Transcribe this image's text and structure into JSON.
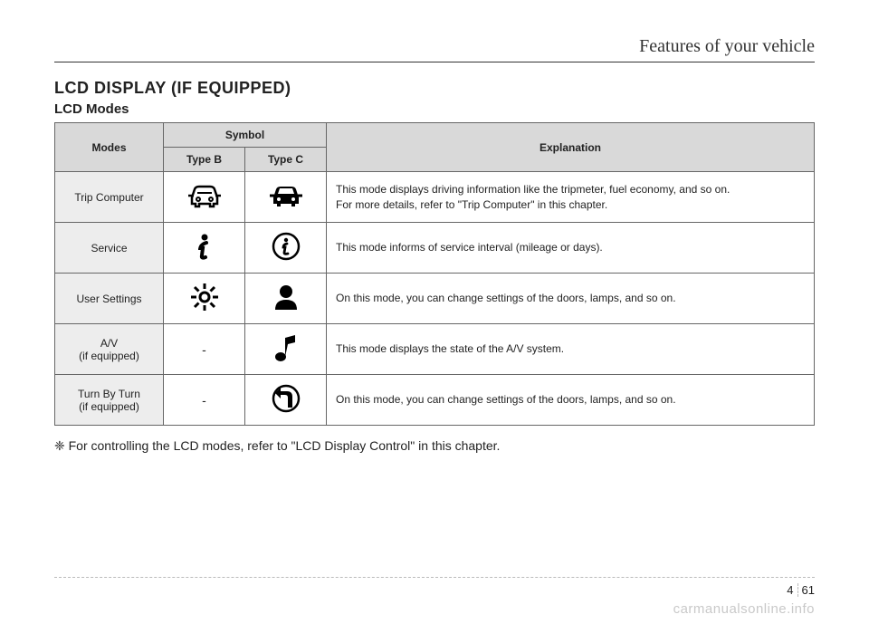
{
  "header": {
    "title": "Features of your vehicle"
  },
  "section": {
    "title": "LCD DISPLAY (IF EQUIPPED)",
    "subtitle": "LCD Modes"
  },
  "table": {
    "headers": {
      "modes": "Modes",
      "symbol": "Symbol",
      "typeB": "Type B",
      "typeC": "Type C",
      "explanation": "Explanation"
    },
    "rows": [
      {
        "mode": "Trip Computer",
        "typeB_icon": "car-outline",
        "typeC_icon": "car-solid",
        "typeB_text": null,
        "typeC_text": null,
        "explanation": "This mode displays driving information like the tripmeter, fuel economy, and so on.\nFor more details, refer to \"Trip Computer\" in this chapter."
      },
      {
        "mode": "Service",
        "typeB_icon": "info-italic",
        "typeC_icon": "info-circle",
        "typeB_text": null,
        "typeC_text": null,
        "explanation": "This mode informs of service interval (mileage or days)."
      },
      {
        "mode": "User Settings",
        "typeB_icon": "gear-outline",
        "typeC_icon": "person-solid",
        "typeB_text": null,
        "typeC_text": null,
        "explanation": "On this mode, you can change settings of the doors, lamps, and so on."
      },
      {
        "mode": "A/V\n(if equipped)",
        "typeB_icon": null,
        "typeC_icon": "music-note",
        "typeB_text": "-",
        "typeC_text": null,
        "explanation": "This mode displays the state of the A/V system."
      },
      {
        "mode": "Turn By Turn\n(if equipped)",
        "typeB_icon": null,
        "typeC_icon": "turn-arrow",
        "typeB_text": "-",
        "typeC_text": null,
        "explanation": "On this mode, you can change settings of the doors, lamps, and so on."
      }
    ]
  },
  "footnote": "❈ For controlling the LCD modes, refer to \"LCD Display Control\" in this chapter.",
  "page": {
    "section": "4",
    "number": "61"
  },
  "watermark": "carmanualsonline.info",
  "colors": {
    "header_bg": "#d9d9d9",
    "mode_bg": "#ededed",
    "border": "#666666",
    "text": "#222222",
    "watermark": "#c9c9c9"
  }
}
